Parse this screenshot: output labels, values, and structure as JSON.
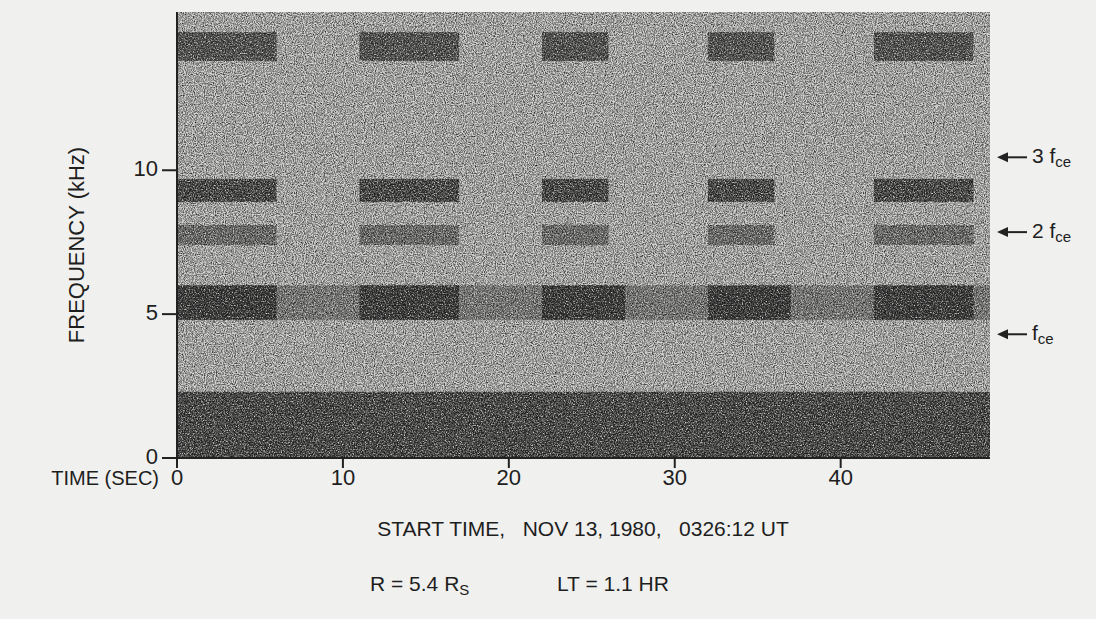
{
  "chart_data": {
    "type": "spectrogram",
    "x_label": "TIME (SEC)",
    "y_label": "FREQUENCY (kHz)",
    "xlim": [
      0,
      49
    ],
    "xticks": [
      0,
      10,
      20,
      30,
      40
    ],
    "ylim": [
      0,
      15.5
    ],
    "yticks": [
      0,
      5,
      10
    ],
    "bands": [
      {
        "low": 0,
        "high": 2.3,
        "intensity": 0.85,
        "intervals": [
          [
            0,
            49
          ]
        ]
      },
      {
        "low": 4.8,
        "high": 6.0,
        "intensity": 0.4,
        "intervals": [
          [
            0,
            49
          ]
        ]
      },
      {
        "low": 4.8,
        "high": 6.0,
        "intensity": 0.75,
        "intervals": [
          [
            0,
            6
          ],
          [
            11,
            17
          ],
          [
            22,
            27
          ],
          [
            32,
            37
          ],
          [
            42,
            48
          ]
        ]
      },
      {
        "low": 7.4,
        "high": 8.1,
        "intensity": 0.5,
        "intervals": [
          [
            0,
            6
          ],
          [
            11,
            17
          ],
          [
            22,
            26
          ],
          [
            32,
            36
          ],
          [
            42,
            48
          ]
        ]
      },
      {
        "low": 8.9,
        "high": 9.7,
        "intensity": 0.85,
        "intervals": [
          [
            0,
            6
          ],
          [
            11,
            17
          ],
          [
            22,
            26
          ],
          [
            32,
            36
          ],
          [
            42,
            48
          ]
        ]
      },
      {
        "low": 13.8,
        "high": 14.8,
        "intensity": 0.75,
        "intervals": [
          [
            0,
            6
          ],
          [
            11,
            17
          ],
          [
            22,
            26
          ],
          [
            32,
            36
          ],
          [
            42,
            48
          ]
        ]
      }
    ],
    "annotations": [
      {
        "text": "3 f",
        "sub": "ce",
        "value": 10.45
      },
      {
        "text": "2 f",
        "sub": "ce",
        "value": 7.85
      },
      {
        "text": "f",
        "sub": "ce",
        "value": 4.3
      }
    ],
    "notes": [
      {
        "text": "START TIME,   NOV 13, 1980,   0326:12 UT"
      },
      {
        "text": "R = 5.4 R",
        "sub": "S"
      },
      {
        "text": "LT = 1.1 HR"
      }
    ]
  }
}
